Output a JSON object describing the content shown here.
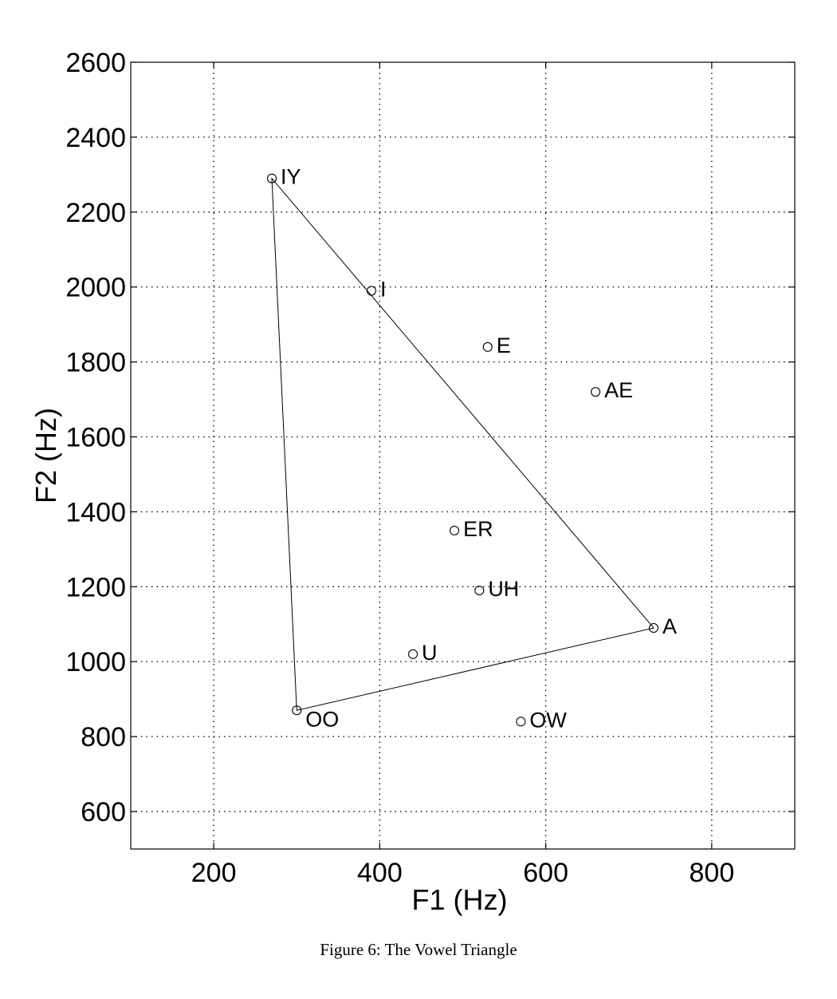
{
  "chart_data": {
    "type": "scatter",
    "xlabel": "F1 (Hz)",
    "ylabel": "F2 (Hz)",
    "xlim": [
      100,
      900
    ],
    "ylim": [
      500,
      2600
    ],
    "xticks": [
      200,
      400,
      600,
      800
    ],
    "yticks": [
      600,
      800,
      1000,
      1200,
      1400,
      1600,
      1800,
      2000,
      2200,
      2400,
      2600
    ],
    "grid": true,
    "points": [
      {
        "label": "IY",
        "x": 270,
        "y": 2290
      },
      {
        "label": "I",
        "x": 390,
        "y": 1990
      },
      {
        "label": "E",
        "x": 530,
        "y": 1840
      },
      {
        "label": "AE",
        "x": 660,
        "y": 1720
      },
      {
        "label": "ER",
        "x": 490,
        "y": 1350
      },
      {
        "label": "UH",
        "x": 520,
        "y": 1190
      },
      {
        "label": "A",
        "x": 730,
        "y": 1090
      },
      {
        "label": "U",
        "x": 440,
        "y": 1020
      },
      {
        "label": "OO",
        "x": 300,
        "y": 870
      },
      {
        "label": "OW",
        "x": 570,
        "y": 840
      }
    ],
    "triangle": [
      "IY",
      "A",
      "OO"
    ]
  },
  "caption": "Figure 6: The Vowel Triangle"
}
